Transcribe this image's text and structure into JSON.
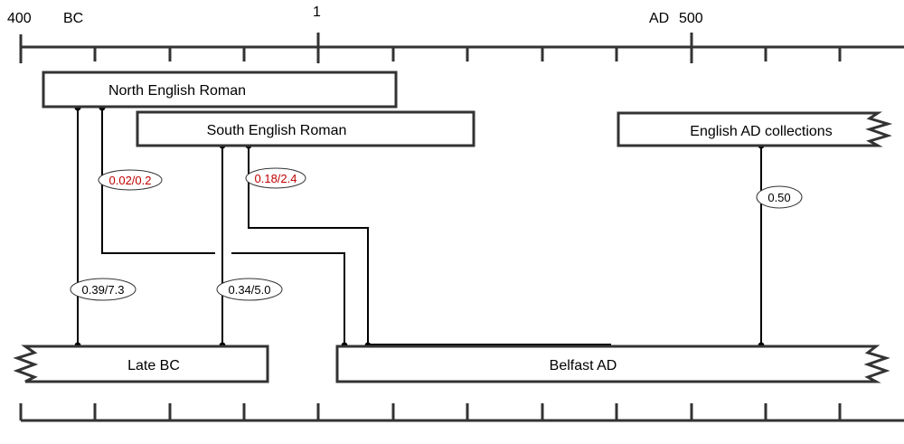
{
  "axis": {
    "label_400": "400",
    "label_bc": "BC",
    "label_1": "1",
    "label_ad": "AD",
    "label_500": "500"
  },
  "boxes": {
    "north_english_roman": "North English Roman",
    "south_english_roman": "South English Roman",
    "english_ad_collections": "English AD collections",
    "late_bc": "Late BC",
    "belfast_ad": "Belfast AD"
  },
  "links": {
    "north_to_belfast": "0.02/0.2",
    "south_to_belfast": "0.18/2.4",
    "english_ad_to_belfast": "0.50",
    "north_to_late_bc": "0.39/7.3",
    "south_to_late_bc": "0.34/5.0"
  },
  "colors": {
    "line": "#000000",
    "box_border": "#333333",
    "highlight_text": "#c00000",
    "normal_text": "#000000"
  }
}
